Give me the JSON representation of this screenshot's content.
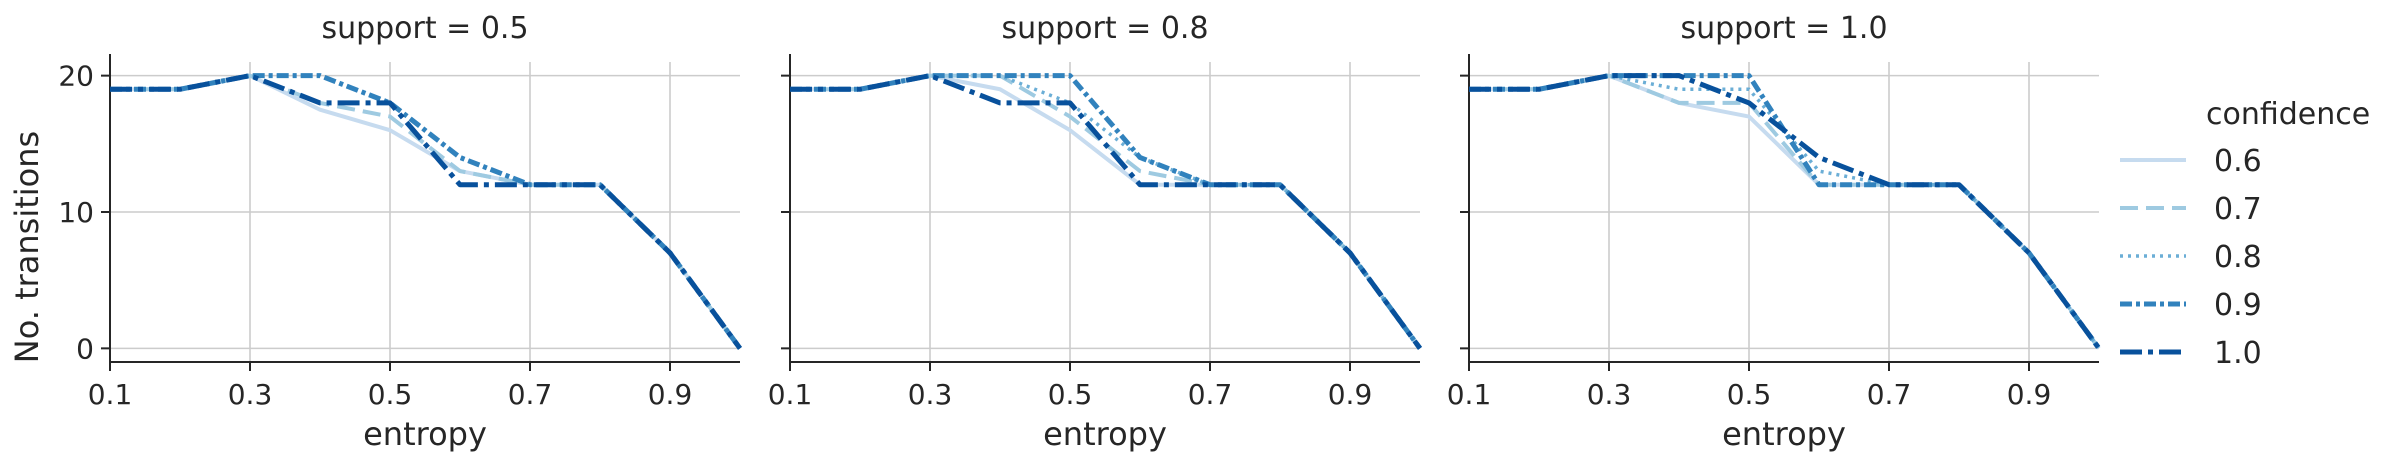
{
  "legend": {
    "title": "confidence",
    "entries": [
      "0.6",
      "0.7",
      "0.8",
      "0.9",
      "1.0"
    ]
  },
  "colors": {
    "0.6": "#c6dbef",
    "0.7": "#9ecae1",
    "0.8": "#6baed6",
    "0.9": "#3182bd",
    "1.0": "#08519c",
    "grid": "#cccccc",
    "axis": "#262626"
  },
  "chart_data": [
    {
      "type": "line",
      "title": "support = 0.5",
      "xlabel": "entropy",
      "ylabel": "No. transitions",
      "x_ticks": [
        "0.1",
        "0.3",
        "0.5",
        "0.7",
        "0.9"
      ],
      "y_ticks": [
        "0",
        "10",
        "20"
      ],
      "xlim": [
        0.1,
        1.0
      ],
      "ylim": [
        -1,
        21
      ],
      "grid": true,
      "x": [
        0.1,
        0.2,
        0.3,
        0.4,
        0.5,
        0.6,
        0.7,
        0.8,
        0.9,
        1.0
      ],
      "series": [
        {
          "name": "0.6",
          "values": [
            19,
            19,
            20,
            17.5,
            16,
            13,
            12,
            12,
            7,
            0
          ]
        },
        {
          "name": "0.7",
          "values": [
            19,
            19,
            20,
            18,
            17,
            13,
            12,
            12,
            7,
            0
          ]
        },
        {
          "name": "0.8",
          "values": [
            19,
            19,
            20,
            20,
            18,
            14,
            12,
            12,
            7,
            0
          ]
        },
        {
          "name": "0.9",
          "values": [
            19,
            19,
            20,
            20,
            18,
            14,
            12,
            12,
            7,
            0
          ]
        },
        {
          "name": "1.0",
          "values": [
            19,
            19,
            20,
            18,
            18,
            12,
            12,
            12,
            7,
            0
          ]
        }
      ]
    },
    {
      "type": "line",
      "title": "support = 0.8",
      "xlabel": "entropy",
      "ylabel": "",
      "x_ticks": [
        "0.1",
        "0.3",
        "0.5",
        "0.7",
        "0.9"
      ],
      "y_ticks": [
        "0",
        "10",
        "20"
      ],
      "xlim": [
        0.1,
        1.0
      ],
      "ylim": [
        -1,
        21
      ],
      "grid": true,
      "x": [
        0.1,
        0.2,
        0.3,
        0.4,
        0.5,
        0.6,
        0.7,
        0.8,
        0.9,
        1.0
      ],
      "series": [
        {
          "name": "0.6",
          "values": [
            19,
            19,
            20,
            19,
            16,
            12,
            12,
            12,
            7,
            0
          ]
        },
        {
          "name": "0.7",
          "values": [
            19,
            19,
            20,
            20,
            17,
            13,
            12,
            12,
            7,
            0
          ]
        },
        {
          "name": "0.8",
          "values": [
            19,
            19,
            20,
            20,
            18,
            14,
            12,
            12,
            7,
            0
          ]
        },
        {
          "name": "0.9",
          "values": [
            19,
            19,
            20,
            20,
            20,
            14,
            12,
            12,
            7,
            0
          ]
        },
        {
          "name": "1.0",
          "values": [
            19,
            19,
            20,
            18,
            18,
            12,
            12,
            12,
            7,
            0
          ]
        }
      ]
    },
    {
      "type": "line",
      "title": "support = 1.0",
      "xlabel": "entropy",
      "ylabel": "",
      "x_ticks": [
        "0.1",
        "0.3",
        "0.5",
        "0.7",
        "0.9"
      ],
      "y_ticks": [
        "0",
        "10",
        "20"
      ],
      "xlim": [
        0.1,
        1.0
      ],
      "ylim": [
        -1,
        21
      ],
      "grid": true,
      "x": [
        0.1,
        0.2,
        0.3,
        0.4,
        0.5,
        0.6,
        0.7,
        0.8,
        0.9,
        1.0
      ],
      "series": [
        {
          "name": "0.6",
          "values": [
            19,
            19,
            20,
            18,
            17,
            12,
            12,
            12,
            7,
            0
          ]
        },
        {
          "name": "0.7",
          "values": [
            19,
            19,
            20,
            18,
            18,
            12,
            12,
            12,
            7,
            0
          ]
        },
        {
          "name": "0.8",
          "values": [
            19,
            19,
            20,
            19,
            19,
            13,
            12,
            12,
            7,
            0
          ]
        },
        {
          "name": "0.9",
          "values": [
            19,
            19,
            20,
            20,
            20,
            12,
            12,
            12,
            7,
            0
          ]
        },
        {
          "name": "1.0",
          "values": [
            19,
            19,
            20,
            20,
            18,
            14,
            12,
            12,
            7,
            0
          ]
        }
      ]
    }
  ]
}
